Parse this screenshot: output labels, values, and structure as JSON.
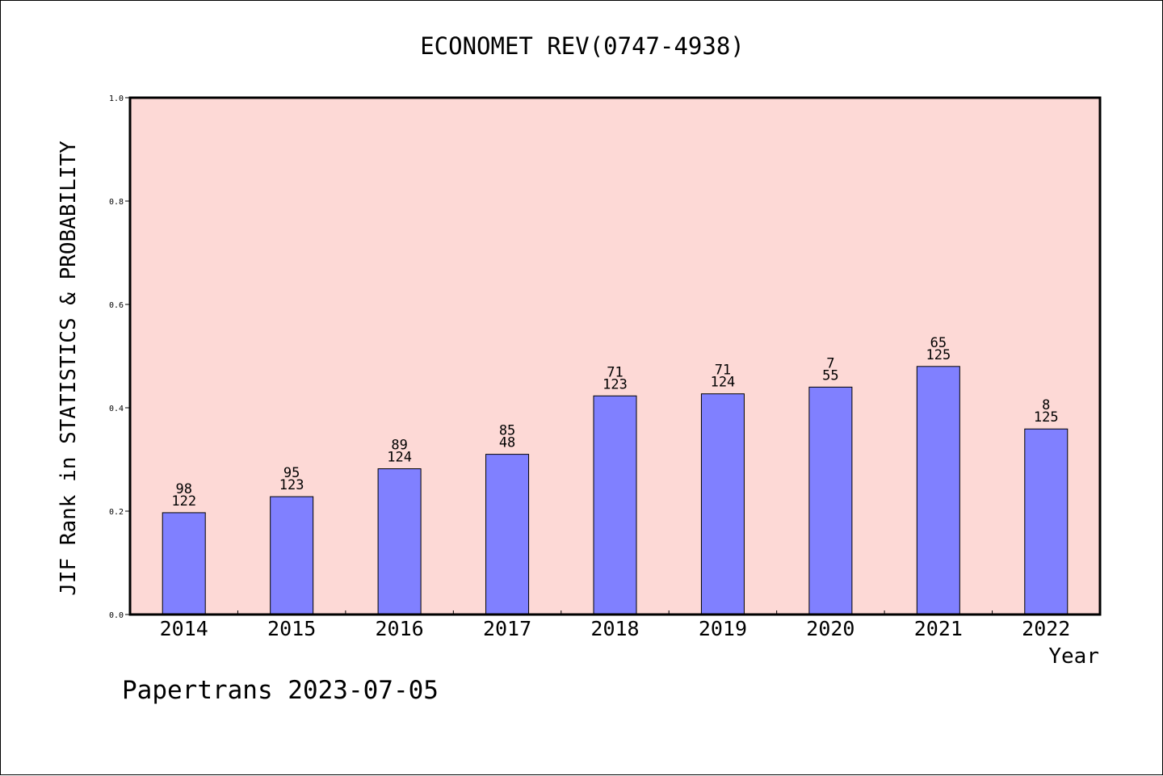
{
  "chart_data": {
    "type": "bar",
    "title": "ECONOMET REV(0747-4938)",
    "ylabel": "JIF Rank in STATISTICS & PROBABILITY",
    "xlabel": "Year",
    "footer": "Papertrans 2023-07-05",
    "ylim": [
      0,
      1.0
    ],
    "yticks": [
      "0.0",
      "0.2",
      "0.4",
      "0.6",
      "0.8",
      "1.0"
    ],
    "ytick_values": [
      0.0,
      0.2,
      0.4,
      0.6,
      0.8,
      1.0
    ],
    "categories": [
      "2014",
      "2015",
      "2016",
      "2017",
      "2018",
      "2019",
      "2020",
      "2021",
      "2022"
    ],
    "values": [
      0.197,
      0.228,
      0.282,
      0.31,
      0.423,
      0.427,
      0.44,
      0.48,
      0.359
    ],
    "rank": [
      "98",
      "95",
      "89",
      "85",
      "71",
      "71",
      "7",
      "65",
      "8"
    ],
    "total": [
      "122",
      "123",
      "124",
      "48",
      "123",
      "124",
      "55",
      "125",
      "125"
    ],
    "grid": false,
    "colors": {
      "bar": "#8080ff",
      "plot_bg": "#fdd9d6"
    }
  }
}
